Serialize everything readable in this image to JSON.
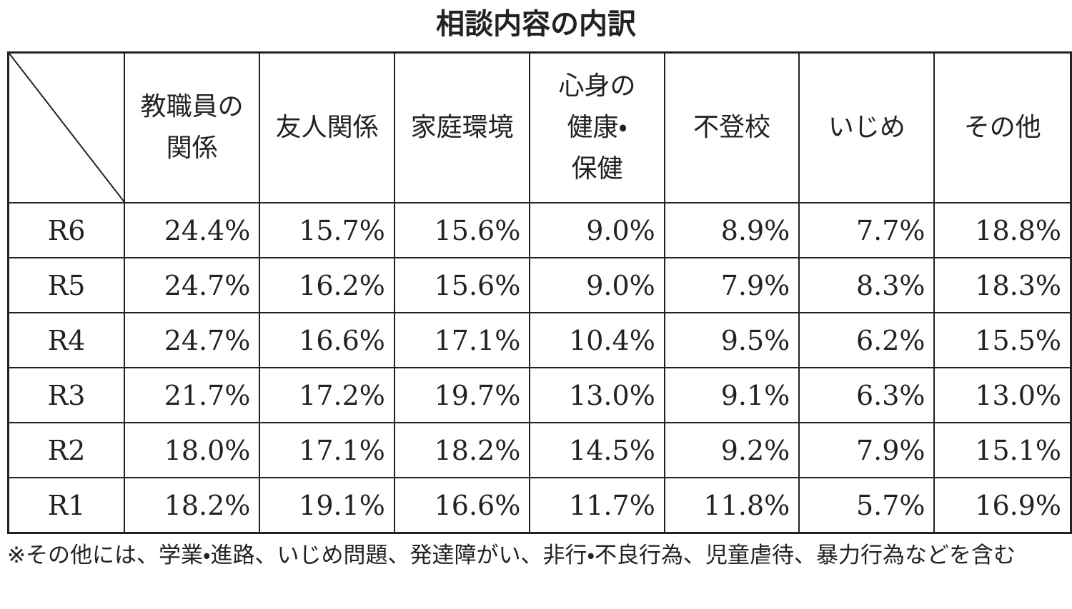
{
  "title": "相談内容の内訳",
  "table": {
    "columns": [
      [
        "教職員の",
        "関係"
      ],
      [
        "友人関係"
      ],
      [
        "家庭環境"
      ],
      [
        "心身の",
        "健康・",
        "保健"
      ],
      [
        "不登校"
      ],
      [
        "いじめ"
      ],
      [
        "その他"
      ]
    ],
    "rows": [
      {
        "label": "R6",
        "cells": [
          "24.4%",
          "15.7%",
          "15.6%",
          "9.0%",
          "8.9%",
          "7.7%",
          "18.8%"
        ]
      },
      {
        "label": "R5",
        "cells": [
          "24.7%",
          "16.2%",
          "15.6%",
          "9.0%",
          "7.9%",
          "8.3%",
          "18.3%"
        ]
      },
      {
        "label": "R4",
        "cells": [
          "24.7%",
          "16.6%",
          "17.1%",
          "10.4%",
          "9.5%",
          "6.2%",
          "15.5%"
        ]
      },
      {
        "label": "R3",
        "cells": [
          "21.7%",
          "17.2%",
          "19.7%",
          "13.0%",
          "9.1%",
          "6.3%",
          "13.0%"
        ]
      },
      {
        "label": "R2",
        "cells": [
          "18.0%",
          "17.1%",
          "18.2%",
          "14.5%",
          "9.2%",
          "7.9%",
          "15.1%"
        ]
      },
      {
        "label": "R1",
        "cells": [
          "18.2%",
          "19.1%",
          "16.6%",
          "11.7%",
          "11.8%",
          "5.7%",
          "16.9%"
        ]
      }
    ]
  },
  "footnote": "※その他には、学業・進路、いじめ問題、発達障がい、非行・不良行為、児童虐待、暴力行為などを含む"
}
